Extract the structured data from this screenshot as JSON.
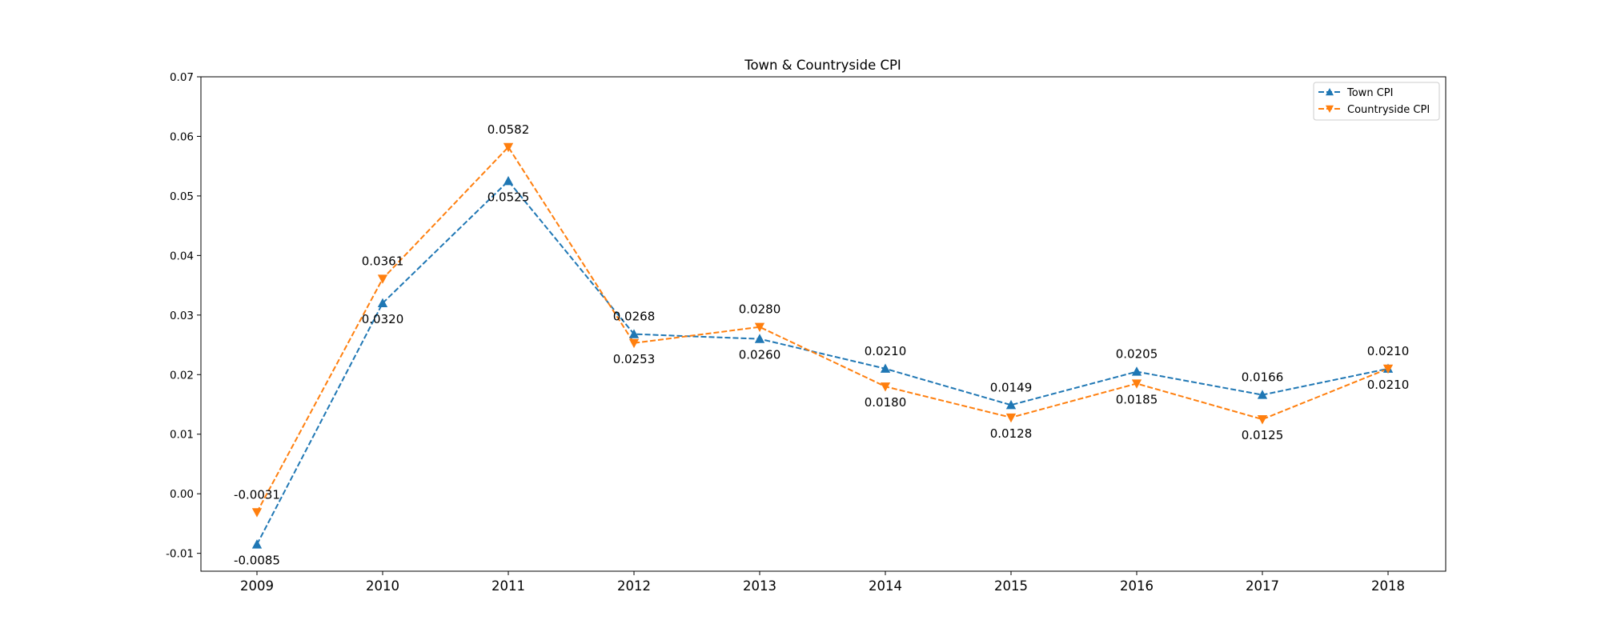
{
  "chart_data": {
    "type": "line",
    "title": "Town & Countryside CPI",
    "xlabel": "",
    "ylabel": "",
    "categories": [
      "2009",
      "2010",
      "2011",
      "2012",
      "2013",
      "2014",
      "2015",
      "2016",
      "2017",
      "2018"
    ],
    "ylim": [
      -0.013,
      0.07
    ],
    "yticks": [
      "-0.01",
      "0.00",
      "0.01",
      "0.02",
      "0.03",
      "0.04",
      "0.05",
      "0.06",
      "0.07"
    ],
    "grid": false,
    "legend_position": "top-right",
    "series": [
      {
        "name": "Town CPI",
        "color": "#1f77b4",
        "marker": "triangle-up",
        "line_style": "dashed",
        "values": [
          -0.0085,
          0.032,
          0.0525,
          0.0268,
          0.026,
          0.021,
          0.0149,
          0.0205,
          0.0166,
          0.021
        ],
        "labels": [
          "-0.0085",
          "0.0320",
          "0.0525",
          "0.0268",
          "0.0260",
          "0.0210",
          "0.0149",
          "0.0205",
          "0.0166",
          "0.0210"
        ],
        "label_side": [
          "below",
          "below",
          "below",
          "above",
          "below",
          "above",
          "above",
          "above",
          "above",
          "below"
        ]
      },
      {
        "name": "Countryside CPI",
        "color": "#ff7f0e",
        "marker": "triangle-down",
        "line_style": "dashed",
        "values": [
          -0.0031,
          0.0361,
          0.0582,
          0.0253,
          0.028,
          0.018,
          0.0128,
          0.0185,
          0.0125,
          0.021
        ],
        "labels": [
          "-0.0031",
          "0.0361",
          "0.0582",
          "0.0253",
          "0.0280",
          "0.0180",
          "0.0128",
          "0.0185",
          "0.0125",
          "0.0210"
        ],
        "label_side": [
          "above",
          "above",
          "above",
          "below",
          "above",
          "below",
          "below",
          "below",
          "below",
          "above"
        ]
      }
    ]
  }
}
